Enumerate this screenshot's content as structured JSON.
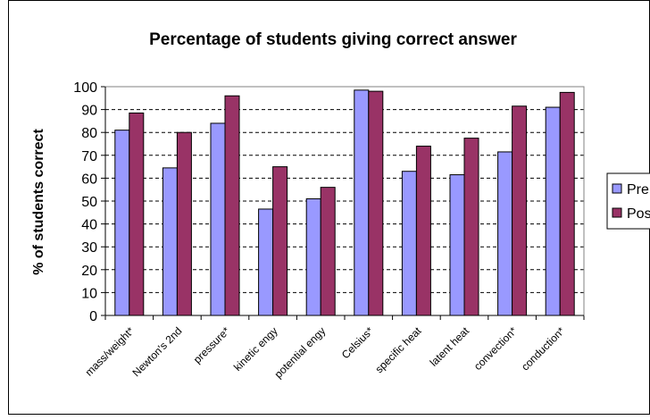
{
  "chart_data": {
    "type": "bar",
    "title": "Percentage of students giving correct answer",
    "xlabel": "",
    "ylabel": "% of students correct",
    "ylim": [
      0,
      100
    ],
    "yticks": [
      0,
      10,
      20,
      30,
      40,
      50,
      60,
      70,
      80,
      90,
      100
    ],
    "grid": true,
    "legend_position": "right",
    "categories": [
      "mass/weight*",
      "Newton's 2nd",
      "pressure*",
      "kinetic engy",
      "potential engy",
      "Celsius*",
      "specific heat",
      "latent heat",
      "convection*",
      "conduction*"
    ],
    "series": [
      {
        "name": "Pre",
        "color": "#9999ff",
        "values": [
          81,
          64.5,
          84,
          46.5,
          51,
          98.5,
          63,
          61.5,
          71.5,
          91
        ]
      },
      {
        "name": "Post",
        "color": "#993366",
        "values": [
          88.5,
          80,
          96,
          65,
          56,
          98,
          74,
          77.5,
          91.5,
          97.5
        ]
      }
    ]
  }
}
